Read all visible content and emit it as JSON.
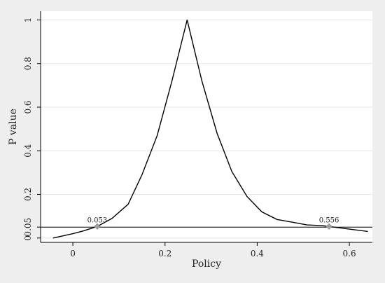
{
  "chart_data": {
    "type": "line",
    "title": "",
    "xlabel": "Policy",
    "ylabel": "P value",
    "xlim": [
      -0.07,
      0.65
    ],
    "ylim": [
      -0.02,
      1.04
    ],
    "x_ticks": [
      0,
      0.2,
      0.4,
      0.6
    ],
    "x_tick_labels": [
      "0",
      "0.2",
      "0.4",
      "0.6"
    ],
    "y_ticks": [
      0,
      0.05,
      0.2,
      0.4,
      0.6,
      0.8,
      1
    ],
    "y_tick_labels": [
      "0",
      "0.05",
      "0.2",
      "0.4",
      "0.6",
      "0.8",
      "1"
    ],
    "grid": "horizontal",
    "legend": "none",
    "reference_line": {
      "y": 0.05
    },
    "series": [
      {
        "x": [
          -0.043,
          0.0,
          0.022,
          0.053,
          0.085,
          0.12,
          0.15,
          0.183,
          0.215,
          0.248,
          0.28,
          0.313,
          0.345,
          0.378,
          0.41,
          0.443,
          0.475,
          0.508,
          0.54,
          0.556,
          0.6,
          0.64
        ],
        "y": [
          0.0,
          0.02,
          0.032,
          0.053,
          0.09,
          0.155,
          0.29,
          0.47,
          0.72,
          1.0,
          0.72,
          0.48,
          0.305,
          0.19,
          0.12,
          0.085,
          0.073,
          0.06,
          0.057,
          0.053,
          0.041,
          0.03
        ]
      }
    ],
    "highlighted_points": [
      {
        "x": 0.053,
        "y": 0.053,
        "label": "0.053"
      },
      {
        "x": 0.556,
        "y": 0.053,
        "label": "0.556"
      }
    ],
    "colors": {
      "line": "#000000",
      "grid": "#e6e6e6",
      "marker": "#a0a0a0",
      "plot_background": "#ffffff",
      "outer_background": "#eeeeee"
    }
  }
}
